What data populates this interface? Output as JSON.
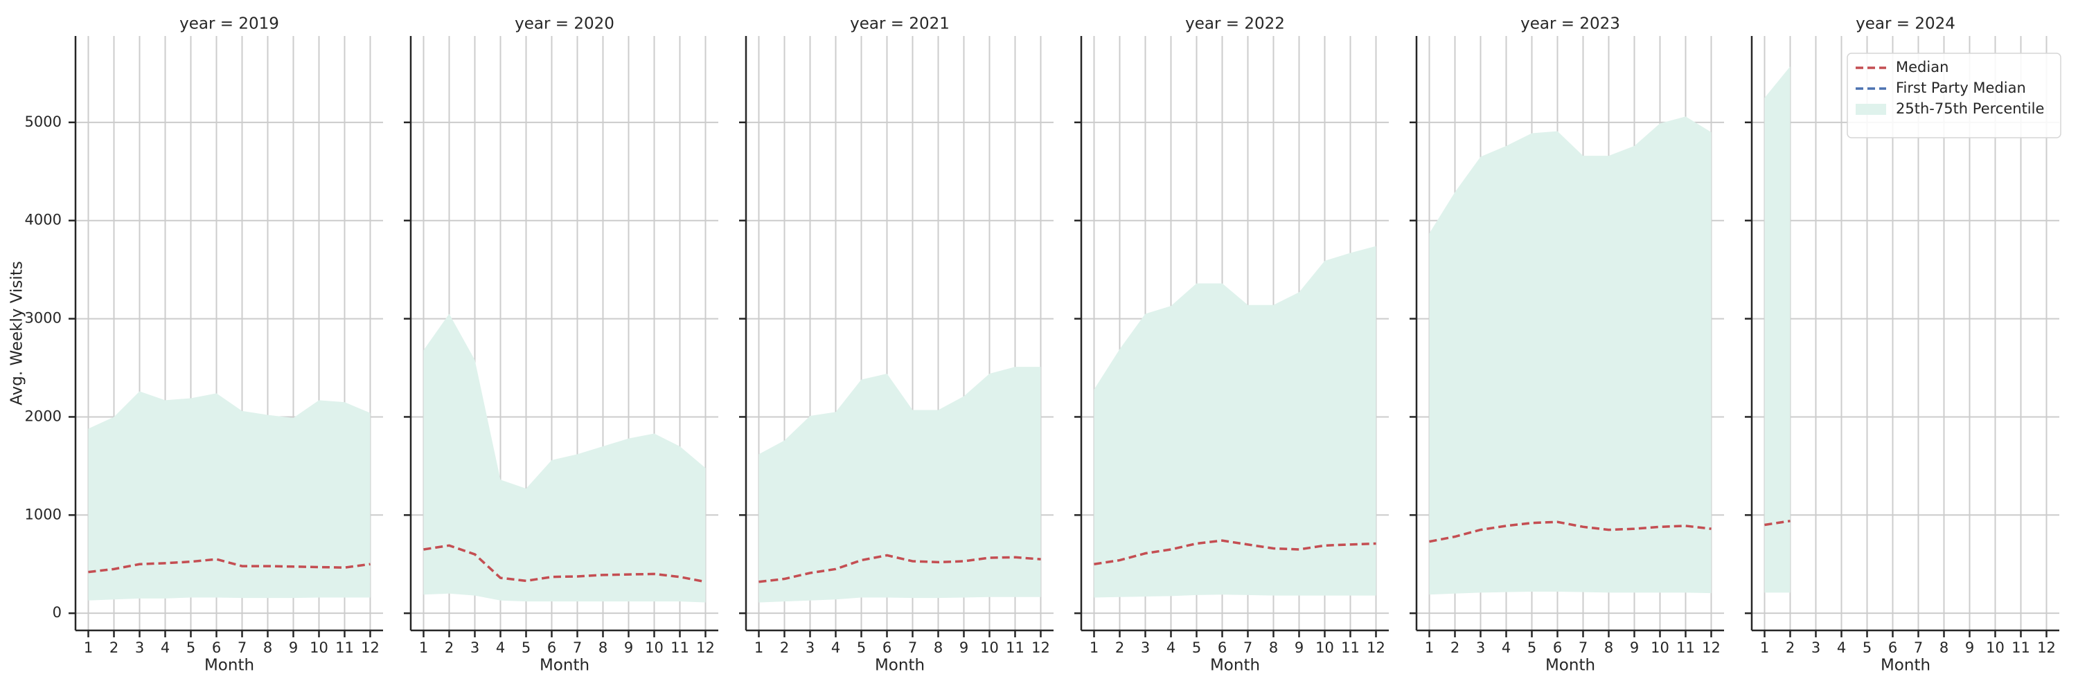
{
  "chart_data": [
    {
      "type": "line",
      "title": "year = 2019",
      "xlabel": "Month",
      "ylabel": "Avg. Weekly Visits",
      "x": [
        1,
        2,
        3,
        4,
        5,
        6,
        7,
        8,
        9,
        10,
        11,
        12
      ],
      "xlim": [
        0.5,
        12.5
      ],
      "xticks": [
        1,
        2,
        3,
        4,
        5,
        6,
        7,
        8,
        9,
        10,
        11,
        12
      ],
      "ylim": [
        -175,
        5880
      ],
      "yticks": [
        0,
        1000,
        2000,
        3000,
        4000,
        5000
      ],
      "grid": true,
      "series": [
        {
          "color": "#c44e52",
          "values": [
            420,
            450,
            500,
            510,
            525,
            550,
            480,
            480,
            475,
            470,
            465,
            500
          ]
        },
        {
          "color": "#4c72b0",
          "values": [
            null,
            null,
            null,
            null,
            null,
            null,
            null,
            null,
            null,
            null,
            null,
            null
          ]
        },
        {
          "color": "#dff2ec",
          "lower": [
            130,
            140,
            150,
            150,
            160,
            160,
            155,
            155,
            155,
            160,
            160,
            160
          ],
          "upper": [
            1880,
            2000,
            2260,
            2170,
            2190,
            2240,
            2060,
            2020,
            1990,
            2170,
            2150,
            2040
          ]
        }
      ]
    },
    {
      "type": "line",
      "title": "year = 2020",
      "xlabel": "Month",
      "x": [
        1,
        2,
        3,
        4,
        5,
        6,
        7,
        8,
        9,
        10,
        11,
        12
      ],
      "xlim": [
        0.5,
        12.5
      ],
      "xticks": [
        1,
        2,
        3,
        4,
        5,
        6,
        7,
        8,
        9,
        10,
        11,
        12
      ],
      "grid": true,
      "series": [
        {
          "color": "#c44e52",
          "values": [
            650,
            690,
            600,
            360,
            330,
            370,
            375,
            390,
            395,
            400,
            370,
            320
          ]
        },
        {
          "color": "#4c72b0",
          "values": [
            null,
            null,
            null,
            null,
            null,
            null,
            null,
            null,
            null,
            null,
            null,
            null
          ]
        },
        {
          "color": "#dff2ec",
          "lower": [
            190,
            200,
            180,
            130,
            120,
            120,
            120,
            120,
            120,
            120,
            120,
            110
          ],
          "upper": [
            2680,
            3050,
            2580,
            1360,
            1270,
            1560,
            1620,
            1700,
            1780,
            1830,
            1700,
            1480
          ]
        }
      ]
    },
    {
      "type": "line",
      "title": "year = 2021",
      "xlabel": "Month",
      "x": [
        1,
        2,
        3,
        4,
        5,
        6,
        7,
        8,
        9,
        10,
        11,
        12
      ],
      "xlim": [
        0.5,
        12.5
      ],
      "xticks": [
        1,
        2,
        3,
        4,
        5,
        6,
        7,
        8,
        9,
        10,
        11,
        12
      ],
      "grid": true,
      "series": [
        {
          "color": "#c44e52",
          "values": [
            320,
            350,
            410,
            450,
            540,
            590,
            530,
            520,
            530,
            565,
            570,
            550
          ]
        },
        {
          "color": "#4c72b0",
          "values": [
            null,
            null,
            null,
            null,
            null,
            null,
            null,
            null,
            null,
            null,
            null,
            null
          ]
        },
        {
          "color": "#dff2ec",
          "lower": [
            110,
            120,
            130,
            140,
            160,
            160,
            155,
            155,
            160,
            165,
            165,
            165
          ],
          "upper": [
            1620,
            1760,
            2010,
            2050,
            2380,
            2440,
            2070,
            2070,
            2210,
            2440,
            2510,
            2510
          ]
        }
      ]
    },
    {
      "type": "line",
      "title": "year = 2022",
      "xlabel": "Month",
      "x": [
        1,
        2,
        3,
        4,
        5,
        6,
        7,
        8,
        9,
        10,
        11,
        12
      ],
      "xlim": [
        0.5,
        12.5
      ],
      "xticks": [
        1,
        2,
        3,
        4,
        5,
        6,
        7,
        8,
        9,
        10,
        11,
        12
      ],
      "grid": true,
      "series": [
        {
          "color": "#c44e52",
          "values": [
            500,
            540,
            610,
            650,
            710,
            740,
            700,
            660,
            650,
            690,
            700,
            710
          ]
        },
        {
          "color": "#4c72b0",
          "values": [
            null,
            null,
            null,
            null,
            null,
            null,
            null,
            null,
            null,
            null,
            null,
            null
          ]
        },
        {
          "color": "#dff2ec",
          "lower": [
            160,
            165,
            170,
            175,
            185,
            190,
            185,
            180,
            180,
            180,
            180,
            180
          ],
          "upper": [
            2280,
            2690,
            3050,
            3130,
            3360,
            3360,
            3140,
            3140,
            3270,
            3590,
            3670,
            3740
          ]
        }
      ]
    },
    {
      "type": "line",
      "title": "year = 2023",
      "xlabel": "Month",
      "x": [
        1,
        2,
        3,
        4,
        5,
        6,
        7,
        8,
        9,
        10,
        11,
        12
      ],
      "xlim": [
        0.5,
        12.5
      ],
      "xticks": [
        1,
        2,
        3,
        4,
        5,
        6,
        7,
        8,
        9,
        10,
        11,
        12
      ],
      "grid": true,
      "series": [
        {
          "color": "#c44e52",
          "values": [
            730,
            780,
            850,
            890,
            920,
            930,
            880,
            850,
            860,
            880,
            890,
            860
          ]
        },
        {
          "color": "#4c72b0",
          "values": [
            null,
            null,
            null,
            null,
            null,
            null,
            null,
            null,
            null,
            null,
            null,
            null
          ]
        },
        {
          "color": "#dff2ec",
          "lower": [
            190,
            200,
            210,
            215,
            220,
            220,
            215,
            210,
            210,
            210,
            210,
            205
          ],
          "upper": [
            3870,
            4290,
            4650,
            4760,
            4890,
            4910,
            4660,
            4660,
            4760,
            4990,
            5060,
            4900
          ]
        }
      ]
    },
    {
      "type": "line",
      "title": "year = 2024",
      "xlabel": "Month",
      "x": [
        1,
        2,
        3,
        4,
        5,
        6,
        7,
        8,
        9,
        10,
        11,
        12
      ],
      "xlim": [
        0.5,
        12.5
      ],
      "xticks": [
        1,
        2,
        3,
        4,
        5,
        6,
        7,
        8,
        9,
        10,
        11,
        12
      ],
      "grid": true,
      "legend": "upper right",
      "series": [
        {
          "name": "Median",
          "color": "#c44e52",
          "values": [
            900,
            940,
            null,
            null,
            null,
            null,
            null,
            null,
            null,
            null,
            null,
            null
          ]
        },
        {
          "name": "First Party Median",
          "color": "#4c72b0",
          "values": [
            null,
            null,
            null,
            null,
            null,
            null,
            null,
            null,
            null,
            null,
            null,
            null
          ]
        },
        {
          "name": "25th-75th Percentile",
          "color": "#dff2ec",
          "lower": [
            210,
            210,
            null,
            null,
            null,
            null,
            null,
            null,
            null,
            null,
            null,
            null
          ],
          "upper": [
            5250,
            5570,
            null,
            null,
            null,
            null,
            null,
            null,
            null,
            null,
            null,
            null
          ]
        }
      ]
    }
  ]
}
